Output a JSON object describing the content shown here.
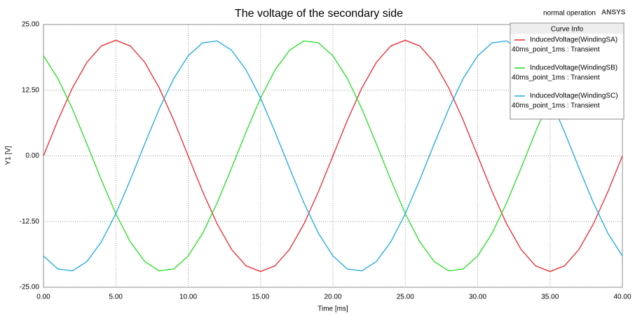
{
  "chart_data": {
    "type": "line",
    "title": "The voltage of the secondary side",
    "note": "normal operation",
    "brand": "ANSYS",
    "legend_title": "Curve Info",
    "x_label": "Time [ms]",
    "y_label": "Y1 [V]",
    "x": [
      0,
      1,
      2,
      3,
      4,
      5,
      6,
      7,
      8,
      9,
      10,
      11,
      12,
      13,
      14,
      15,
      16,
      17,
      18,
      19,
      20,
      21,
      22,
      23,
      24,
      25,
      26,
      27,
      28,
      29,
      30,
      31,
      32,
      33,
      34,
      35,
      36,
      37,
      38,
      39,
      40
    ],
    "series": [
      {
        "name": "InducedVoltage(WindingSA)",
        "source": "40ms_point_1ms : Transient",
        "color": "#e8262d",
        "values": [
          0,
          6.8,
          12.93,
          17.8,
          20.92,
          22,
          20.92,
          17.8,
          12.93,
          6.8,
          0,
          -6.8,
          -12.93,
          -17.8,
          -20.92,
          -22,
          -20.92,
          -17.8,
          -12.93,
          -6.8,
          0,
          6.8,
          12.93,
          17.8,
          20.92,
          22,
          20.92,
          17.8,
          12.93,
          6.8,
          0,
          -6.8,
          -12.93,
          -17.8,
          -20.92,
          -22,
          -20.92,
          -17.8,
          -12.93,
          -6.8,
          0
        ]
      },
      {
        "name": "InducedVoltage(WindingSB)",
        "source": "40ms_point_1ms : Transient",
        "color": "#22dd22",
        "values": [
          19.05,
          14.72,
          8.95,
          2.3,
          -4.57,
          -11,
          -16.35,
          -20.1,
          -21.88,
          -21.52,
          -19.05,
          -14.72,
          -8.95,
          -2.3,
          4.57,
          11,
          16.35,
          20.1,
          21.88,
          21.52,
          19.05,
          14.72,
          8.95,
          2.3,
          -4.57,
          -11,
          -16.35,
          -20.1,
          -21.88,
          -21.52,
          -19.05,
          -14.72,
          -8.95,
          -2.3,
          4.57,
          11,
          16.35,
          20.1,
          21.88,
          21.52,
          19.05
        ]
      },
      {
        "name": "InducedVoltage(WindingSC)",
        "source": "40ms_point_1ms : Transient",
        "color": "#1aa7e0",
        "values": [
          -19.05,
          -21.52,
          -21.88,
          -20.1,
          -16.35,
          -11,
          -4.57,
          2.3,
          8.95,
          14.72,
          19.05,
          21.52,
          21.88,
          20.1,
          16.35,
          11,
          4.57,
          -2.3,
          -8.95,
          -14.72,
          -19.05,
          -21.52,
          -21.88,
          -20.1,
          -16.35,
          -11,
          -4.57,
          2.3,
          8.95,
          14.72,
          19.05,
          21.52,
          21.88,
          20.1,
          16.35,
          11,
          4.57,
          -2.3,
          -8.95,
          -14.72,
          -19.05
        ]
      }
    ],
    "xlim": [
      0,
      40
    ],
    "xticks": [
      {
        "value": 0,
        "label": "0.00"
      },
      {
        "value": 5,
        "label": "5.00"
      },
      {
        "value": 10,
        "label": "10.00"
      },
      {
        "value": 15,
        "label": "15.00"
      },
      {
        "value": 20,
        "label": "20.00"
      },
      {
        "value": 25,
        "label": "25.00"
      },
      {
        "value": 30,
        "label": "30.00"
      },
      {
        "value": 35,
        "label": "35.00"
      },
      {
        "value": 40,
        "label": "40.00"
      }
    ],
    "ylim": [
      -25,
      25
    ],
    "yticks": [
      {
        "value": -25,
        "label": "-25.00"
      },
      {
        "value": -12.5,
        "label": "-12.50"
      },
      {
        "value": 0,
        "label": "0.00"
      },
      {
        "value": 12.5,
        "label": "12.50"
      },
      {
        "value": 25,
        "label": "25.00"
      }
    ],
    "grid": true
  }
}
